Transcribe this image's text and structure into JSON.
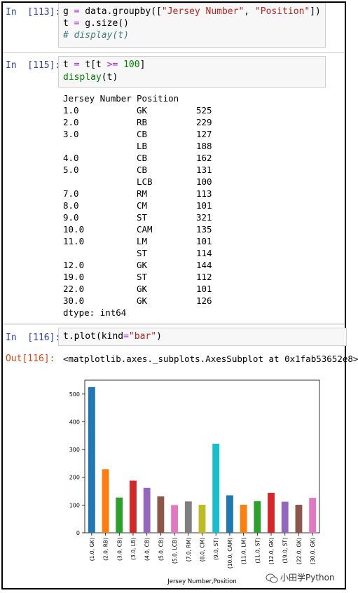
{
  "cells": [
    {
      "prompt": "In  [113]:",
      "lines": [
        [
          {
            "t": "g "
          },
          {
            "t": "=",
            "c": "op"
          },
          {
            "t": " data.groupby(["
          },
          {
            "t": "\"Jersey Number\"",
            "c": "str"
          },
          {
            "t": ", "
          },
          {
            "t": "\"Position\"",
            "c": "str"
          },
          {
            "t": "])"
          }
        ],
        [
          {
            "t": "t "
          },
          {
            "t": "=",
            "c": "op"
          },
          {
            "t": " g.size()"
          }
        ],
        [
          {
            "t": "# display(t)",
            "c": "cm"
          }
        ]
      ]
    },
    {
      "prompt": "In  [115]:",
      "lines": [
        [
          {
            "t": "t "
          },
          {
            "t": "=",
            "c": "op"
          },
          {
            "t": " t[t "
          },
          {
            "t": ">=",
            "c": "op"
          },
          {
            "t": " "
          },
          {
            "t": "100",
            "c": "num"
          },
          {
            "t": "]"
          }
        ],
        [
          {
            "t": "display",
            "c": "kw"
          },
          {
            "t": "(t)"
          }
        ]
      ]
    },
    {
      "prompt": "In  [116]:",
      "lines": [
        [
          {
            "t": "t.plot(kind"
          },
          {
            "t": "=",
            "c": "op"
          },
          {
            "t": "\"bar\"",
            "c": "str"
          },
          {
            "t": ")"
          }
        ]
      ]
    }
  ],
  "series_output": {
    "header": [
      "Jersey Number",
      "Position"
    ],
    "rows": [
      [
        "1.0",
        "GK",
        "525"
      ],
      [
        "2.0",
        "RB",
        "229"
      ],
      [
        "3.0",
        "CB",
        "127"
      ],
      [
        "",
        "LB",
        "188"
      ],
      [
        "4.0",
        "CB",
        "162"
      ],
      [
        "5.0",
        "CB",
        "131"
      ],
      [
        "",
        "LCB",
        "100"
      ],
      [
        "7.0",
        "RM",
        "113"
      ],
      [
        "8.0",
        "CM",
        "101"
      ],
      [
        "9.0",
        "ST",
        "321"
      ],
      [
        "10.0",
        "CAM",
        "135"
      ],
      [
        "11.0",
        "LM",
        "101"
      ],
      [
        "",
        "ST",
        "114"
      ],
      [
        "12.0",
        "GK",
        "144"
      ],
      [
        "19.0",
        "ST",
        "112"
      ],
      [
        "22.0",
        "GK",
        "101"
      ],
      [
        "30.0",
        "GK",
        "126"
      ]
    ],
    "dtype": "dtype: int64"
  },
  "out_prompt": "Out[116]:",
  "out_text": "<matplotlib.axes._subplots.AxesSubplot at 0x1fab53652e8>",
  "watermark": "小田学Python",
  "chart_data": {
    "type": "bar",
    "xlabel": "Jersey Number,Position",
    "ylabel": "",
    "ylim": [
      0,
      550
    ],
    "yticks": [
      0,
      100,
      200,
      300,
      400,
      500
    ],
    "categories": [
      "(1.0, GK)",
      "(2.0, RB)",
      "(3.0, CB)",
      "(3.0, LB)",
      "(4.0, CB)",
      "(5.0, CB)",
      "(5.0, LCB)",
      "(7.0, RM)",
      "(8.0, CM)",
      "(9.0, ST)",
      "(10.0, CAM)",
      "(11.0, LM)",
      "(11.0, ST)",
      "(12.0, GK)",
      "(19.0, ST)",
      "(22.0, GK)",
      "(30.0, GK)"
    ],
    "values": [
      525,
      229,
      127,
      188,
      162,
      131,
      100,
      113,
      101,
      321,
      135,
      101,
      114,
      144,
      112,
      101,
      126
    ],
    "colors": [
      "#1f77b4",
      "#ff7f0e",
      "#2ca02c",
      "#d62728",
      "#9467bd",
      "#8c564b",
      "#e377c2",
      "#7f7f7f",
      "#bcbd22",
      "#17becf"
    ],
    "grid": false,
    "legend": "none"
  }
}
